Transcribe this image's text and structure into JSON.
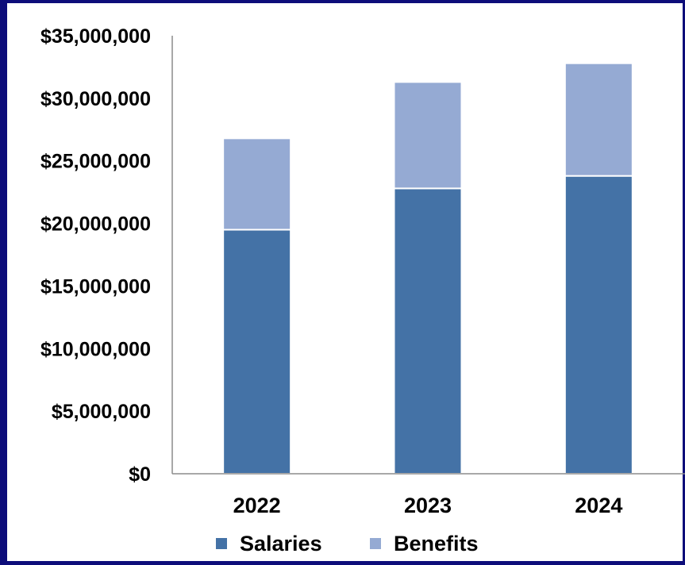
{
  "chart_data": {
    "type": "bar",
    "stacked": true,
    "categories": [
      "2022",
      "2023",
      "2024"
    ],
    "series": [
      {
        "name": "Salaries",
        "values": [
          19500000,
          22800000,
          23800000
        ],
        "color": "#4472a6"
      },
      {
        "name": "Benefits",
        "values": [
          7300000,
          8500000,
          9000000
        ],
        "color": "#95aad3"
      }
    ],
    "ylim": [
      0,
      35000000
    ],
    "yticks": [
      0,
      5000000,
      10000000,
      15000000,
      20000000,
      25000000,
      30000000,
      35000000
    ],
    "ytick_labels": [
      "$0",
      "$5,000,000",
      "$10,000,000",
      "$15,000,000",
      "$20,000,000",
      "$25,000,000",
      "$30,000,000",
      "$35,000,000"
    ],
    "grid": false,
    "legend_position": "bottom",
    "title": "",
    "xlabel": "",
    "ylabel": ""
  },
  "frame_color": "#0d0d7a"
}
